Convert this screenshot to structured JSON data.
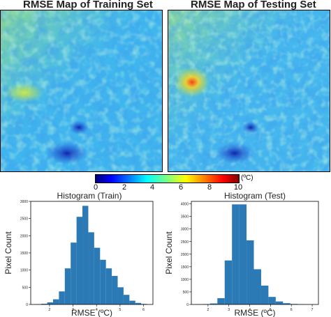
{
  "maps": [
    {
      "title": "RMSE Map of Training Set"
    },
    {
      "title": "RMSE Map of Testing Set"
    }
  ],
  "colorbar": {
    "colormap": "jet",
    "ticks": [
      "0",
      "2",
      "4",
      "6",
      "8",
      "10"
    ],
    "range": [
      0,
      10
    ],
    "unit": "(ºC)"
  },
  "chart_data": [
    {
      "type": "bar",
      "title": "Histogram (Train)",
      "xlabel": "RMSE (ºC)",
      "ylabel": "Pixel Count",
      "bin_edges": [
        1.4,
        1.65,
        1.9,
        2.15,
        2.4,
        2.65,
        2.9,
        3.15,
        3.4,
        3.65,
        3.9,
        4.15,
        4.4,
        4.65,
        4.9,
        5.15,
        5.4,
        5.65,
        5.9,
        6.15
      ],
      "values": [
        5,
        20,
        60,
        150,
        380,
        1050,
        1800,
        2550,
        2870,
        2100,
        1650,
        1300,
        1050,
        830,
        500,
        280,
        110,
        45,
        15
      ],
      "xticks": [
        "2",
        "3",
        "4",
        "5",
        "6"
      ],
      "xlim": [
        1.2,
        6.4
      ],
      "yticks": [
        "0",
        "500",
        "1000",
        "1500",
        "2000",
        "2500",
        "3000"
      ],
      "ylim": [
        0,
        3000
      ],
      "bar_color": "#2b79b5"
    },
    {
      "type": "bar",
      "title": "Histogram (Test)",
      "xlabel": "RMSE (ºC)",
      "ylabel": "Pixel Count",
      "bin_edges": [
        1.4,
        1.75,
        2.1,
        2.45,
        2.8,
        3.15,
        3.5,
        3.85,
        4.2,
        4.55,
        4.9,
        5.25,
        5.6,
        5.95,
        6.3,
        6.65,
        7.0
      ],
      "values": [
        5,
        15,
        40,
        250,
        1750,
        3980,
        3980,
        2550,
        1400,
        750,
        300,
        120,
        50,
        20,
        8,
        3
      ],
      "xticks": [
        "2",
        "3",
        "4",
        "5",
        "6",
        "7"
      ],
      "xlim": [
        1.2,
        7.3
      ],
      "yticks": [
        "0",
        "500",
        "1000",
        "1500",
        "2000",
        "2500",
        "3000",
        "3500",
        "4000"
      ],
      "ylim": [
        0,
        4100
      ],
      "bar_color": "#2b79b5"
    }
  ]
}
